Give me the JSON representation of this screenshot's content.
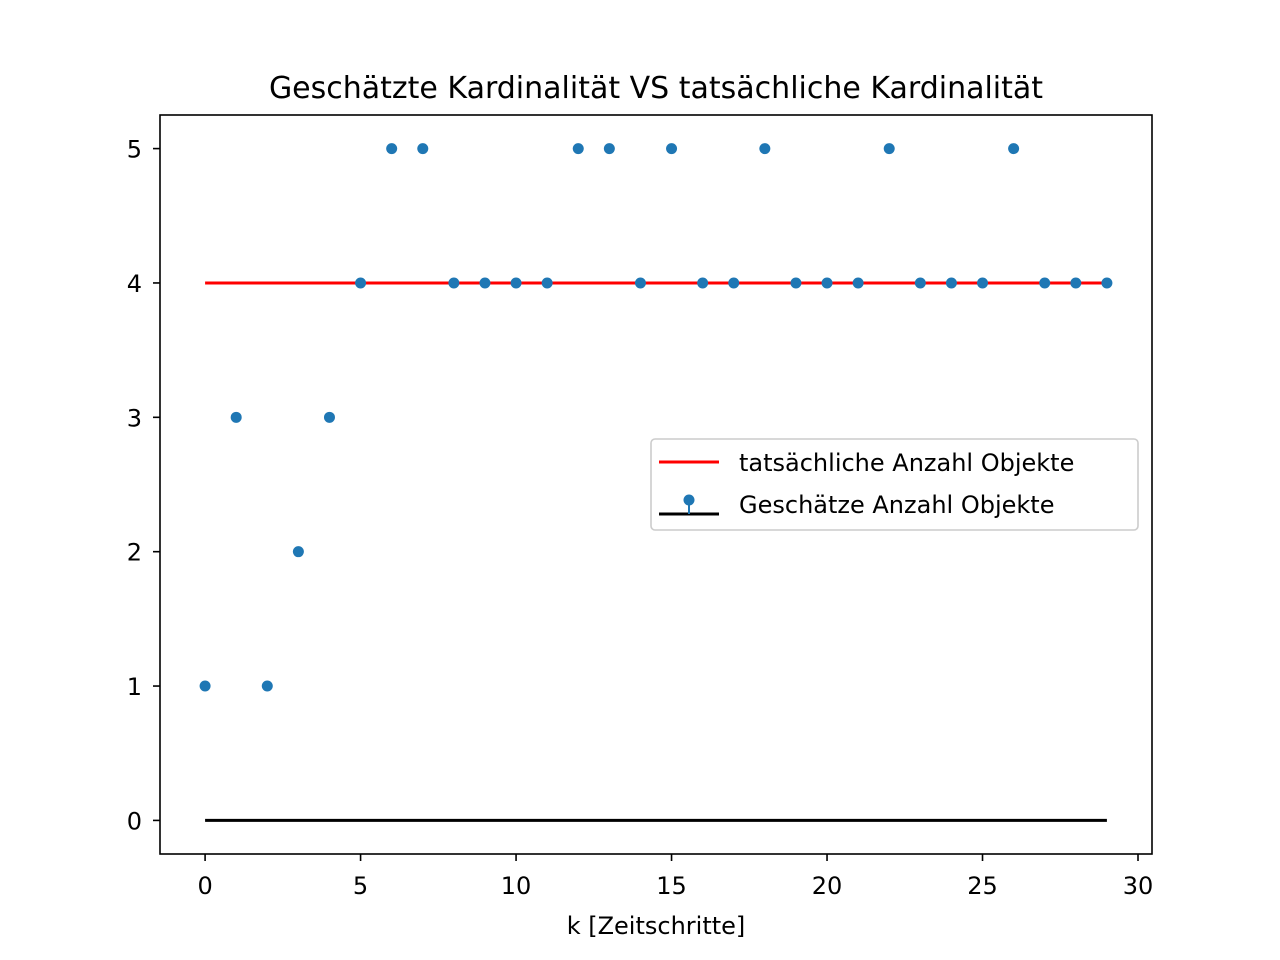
{
  "chart_data": {
    "type": "scatter",
    "title": "Geschätzte Kardinalität VS tatsächliche Kardinalität",
    "xlabel": "k [Zeitschritte]",
    "ylabel": "",
    "xlim": [
      -1.45,
      30.45
    ],
    "ylim": [
      -0.25,
      5.25
    ],
    "xticks": [
      0,
      5,
      10,
      15,
      20,
      25,
      30
    ],
    "yticks": [
      0,
      1,
      2,
      3,
      4,
      5
    ],
    "grid": false,
    "legend_position": "center-right",
    "series": [
      {
        "name": "tatsächliche Anzahl Objekte",
        "kind": "line",
        "color": "#ff0000",
        "x": [
          0,
          29
        ],
        "y": [
          4,
          4
        ]
      },
      {
        "name": "Geschätze Anzahl Objekte",
        "kind": "stem",
        "color": "#1f77b4",
        "baseline_color": "#000000",
        "baseline": 0,
        "x": [
          0,
          1,
          2,
          3,
          4,
          5,
          6,
          7,
          8,
          9,
          10,
          11,
          12,
          13,
          14,
          15,
          16,
          17,
          18,
          19,
          20,
          21,
          22,
          23,
          24,
          25,
          26,
          27,
          28,
          29
        ],
        "y": [
          1,
          3,
          1,
          2,
          3,
          4,
          5,
          5,
          4,
          4,
          4,
          4,
          5,
          5,
          4,
          5,
          4,
          4,
          5,
          4,
          4,
          4,
          5,
          4,
          4,
          4,
          5,
          4,
          4,
          4
        ]
      }
    ]
  }
}
